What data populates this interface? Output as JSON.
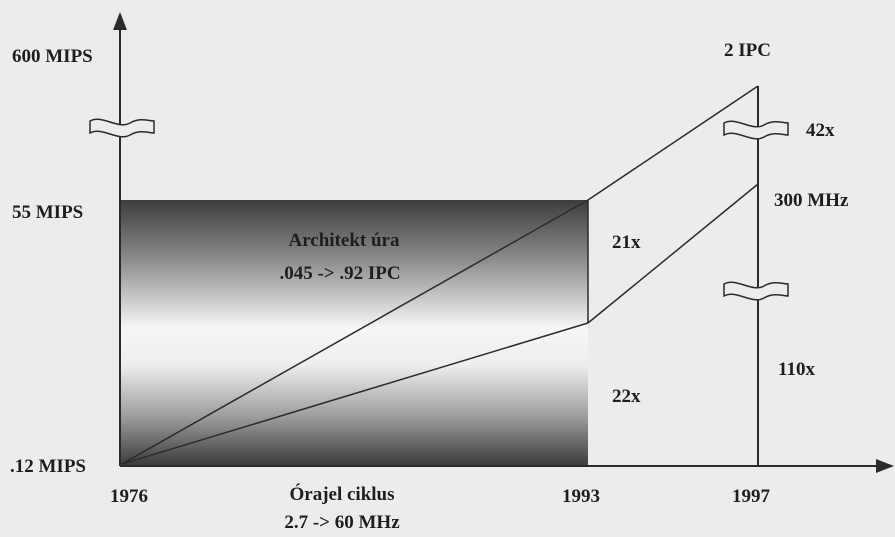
{
  "y_axis": {
    "top": "600 MIPS",
    "middle": "55 MIPS",
    "bottom": ".12 MIPS"
  },
  "x_axis": {
    "start": "1976",
    "mid": "1993",
    "end": "1997",
    "caption_line1": "Órajel ciklus",
    "caption_line2": "2.7 -> 60 MHz"
  },
  "block": {
    "line1": "Architekt úra",
    "line2": ".045 -> .92 IPC"
  },
  "right_labels": {
    "ipc": "2 IPC",
    "mhz": "300 MHz",
    "factor_42": "42x",
    "factor_21": "21x",
    "factor_22": "22x",
    "factor_110": "110x"
  },
  "colors": {
    "background": "#ececea",
    "line": "#2b2b2b",
    "block_dark": "#3d3d3d",
    "block_light": "#f6f6f6"
  }
}
